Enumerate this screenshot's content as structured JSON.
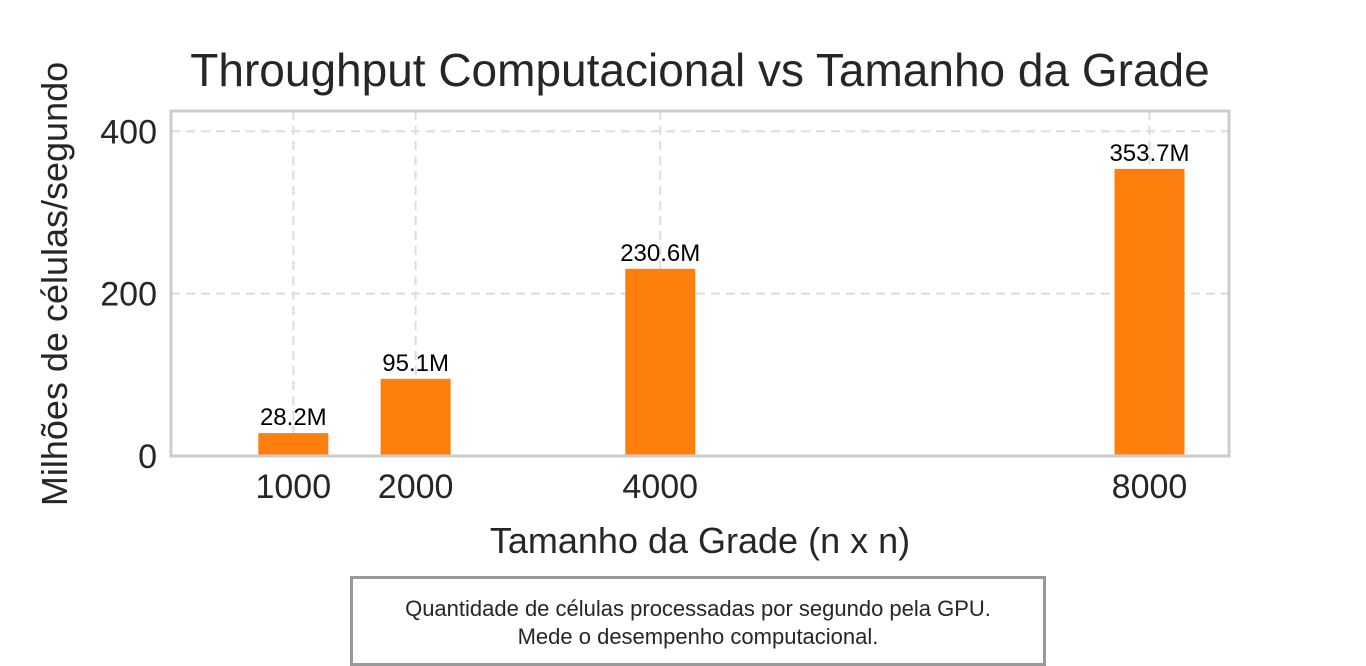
{
  "chart_data": {
    "type": "bar",
    "title": "Throughput Computacional vs Tamanho da Grade",
    "xlabel": "Tamanho da Grade (n x n)",
    "ylabel": "Milhões de células/segundo",
    "x": [
      1000,
      2000,
      4000,
      8000
    ],
    "values": [
      28.2,
      95.1,
      230.6,
      353.7
    ],
    "data_labels": [
      "28.2M",
      "95.1M",
      "230.6M",
      "353.7M"
    ],
    "xticks": [
      "1000",
      "2000",
      "4000",
      "8000"
    ],
    "yticks": [
      "0",
      "200",
      "400"
    ],
    "ytick_values": [
      0,
      200,
      400
    ],
    "xlim": [
      0,
      8650
    ],
    "ylim": [
      0,
      425
    ],
    "grid": true,
    "bar_color": "#ff7f0e"
  },
  "caption": {
    "line1": "Quantidade de células processadas por segundo pela GPU.",
    "line2": "Mede o desempenho computacional."
  }
}
